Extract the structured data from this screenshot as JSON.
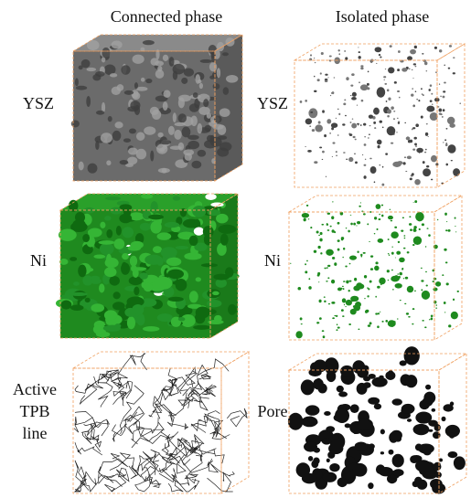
{
  "columns": {
    "connected": "Connected phase",
    "isolated": "Isolated phase"
  },
  "rows": [
    {
      "connected_label": [
        "YSZ"
      ],
      "isolated_label": "YSZ"
    },
    {
      "connected_label": [
        "Ni"
      ],
      "isolated_label": "Ni"
    },
    {
      "connected_label": [
        "Active",
        "TPB",
        "line"
      ],
      "isolated_label": "Pore"
    }
  ]
}
